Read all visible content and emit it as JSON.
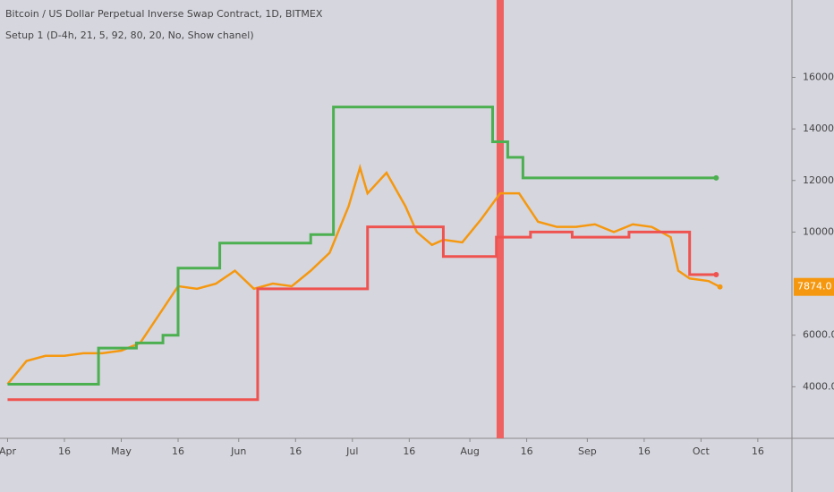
{
  "chart_data": {
    "type": "price-channel",
    "title": "Bitcoin / US Dollar Perpetual Inverse Swap Contract, 1D, BITMEX",
    "subtitle": "Setup 1 (D-4h, 21, 5, 92, 80, 20, No, Show chanel)",
    "xlim": [
      -2,
      207
    ],
    "ylim": [
      2000,
      19000
    ],
    "xticks": [
      {
        "value": 0,
        "label": "Apr"
      },
      {
        "value": 15,
        "label": "16"
      },
      {
        "value": 30,
        "label": "May"
      },
      {
        "value": 45,
        "label": "16"
      },
      {
        "value": 61,
        "label": "Jun"
      },
      {
        "value": 76,
        "label": "16"
      },
      {
        "value": 91,
        "label": "Jul"
      },
      {
        "value": 106,
        "label": "16"
      },
      {
        "value": 122,
        "label": "Aug"
      },
      {
        "value": 137,
        "label": "16"
      },
      {
        "value": 153,
        "label": "Sep"
      },
      {
        "value": 168,
        "label": "16"
      },
      {
        "value": 183,
        "label": "Oct"
      },
      {
        "value": 198,
        "label": "16"
      }
    ],
    "yticks": [
      {
        "value": 4000,
        "label": "4000.0"
      },
      {
        "value": 6000,
        "label": "6000.0"
      },
      {
        "value": 10000,
        "label": "10000.0"
      },
      {
        "value": 12000,
        "label": "12000.0"
      },
      {
        "value": 14000,
        "label": "14000.0"
      },
      {
        "value": 16000,
        "label": "16000.0"
      }
    ],
    "series": [
      {
        "kind": "line",
        "color": "#f5980f",
        "x": [
          0,
          5,
          10,
          15,
          20,
          25,
          30,
          35,
          40,
          45,
          50,
          55,
          60,
          65,
          70,
          75,
          80,
          85,
          90,
          93,
          95,
          100,
          105,
          108,
          112,
          115,
          120,
          125,
          130,
          135,
          140,
          145,
          150,
          155,
          160,
          165,
          170,
          175,
          177,
          180,
          185,
          188
        ],
        "values": [
          4100,
          5000,
          5200,
          5200,
          5300,
          5300,
          5400,
          5700,
          6800,
          7900,
          7800,
          8000,
          8500,
          7800,
          8000,
          7900,
          8500,
          9200,
          11000,
          12500,
          11500,
          12300,
          11000,
          10000,
          9500,
          9700,
          9600,
          10500,
          11500,
          11500,
          10400,
          10200,
          10200,
          10300,
          10000,
          10300,
          10200,
          9800,
          8500,
          8200,
          8100,
          7874
        ]
      },
      {
        "kind": "step",
        "color": "#4caf50",
        "x": [
          0,
          24,
          34,
          41,
          45,
          56,
          80,
          86,
          128,
          132,
          136,
          187
        ],
        "values": [
          4100,
          5500,
          5700,
          6000,
          8600,
          9570,
          9900,
          14850,
          13500,
          12900,
          12100,
          12100
        ]
      },
      {
        "kind": "step",
        "color": "#ef5350",
        "x": [
          0,
          66,
          95,
          115,
          129,
          138,
          149,
          164,
          180,
          187
        ],
        "values": [
          3500,
          7800,
          10200,
          9050,
          9800,
          10000,
          9800,
          10000,
          8350,
          8350
        ]
      }
    ],
    "vline_x": 130,
    "vline_color": "#ef6060",
    "last_price": {
      "value": 7874,
      "label": "7874.0"
    },
    "last_price_color": "#f5980f"
  }
}
